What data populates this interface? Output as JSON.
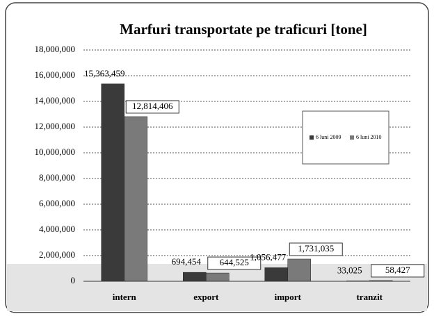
{
  "chart_data": {
    "type": "bar",
    "title": "Marfuri transportate pe traficuri [tone]",
    "categories": [
      "intern",
      "export",
      "import",
      "tranzit"
    ],
    "series": [
      {
        "name": "6 luni 2009",
        "color": "#3a3a3a",
        "values": [
          15363459,
          694454,
          1056477,
          33025
        ],
        "value_labels": [
          "15,363,459",
          "694,454",
          "1,056,477",
          "33,025"
        ]
      },
      {
        "name": "6 luni 2010",
        "color": "#7a7a7a",
        "values": [
          12814406,
          644525,
          1731035,
          58427
        ],
        "value_labels": [
          "12,814,406",
          "644,525",
          "1,731,035",
          "58,427"
        ]
      }
    ],
    "ylim": [
      0,
      18000000
    ],
    "yticks": [
      0,
      {
        "value": 2000000,
        "label": "2,000,000"
      },
      {
        "value": 4000000,
        "label": "4,000,000"
      },
      {
        "value": 6000000,
        "label": "6,000,000"
      },
      {
        "value": 8000000,
        "label": "8,000,000"
      },
      {
        "value": 10000000,
        "label": "10,000,000"
      },
      {
        "value": 12000000,
        "label": "12,000,000"
      },
      {
        "value": 14000000,
        "label": "14,000,000"
      },
      {
        "value": 16000000,
        "label": "16,000,000"
      },
      {
        "value": 18000000,
        "label": "18,000,000"
      }
    ],
    "grid": true
  }
}
